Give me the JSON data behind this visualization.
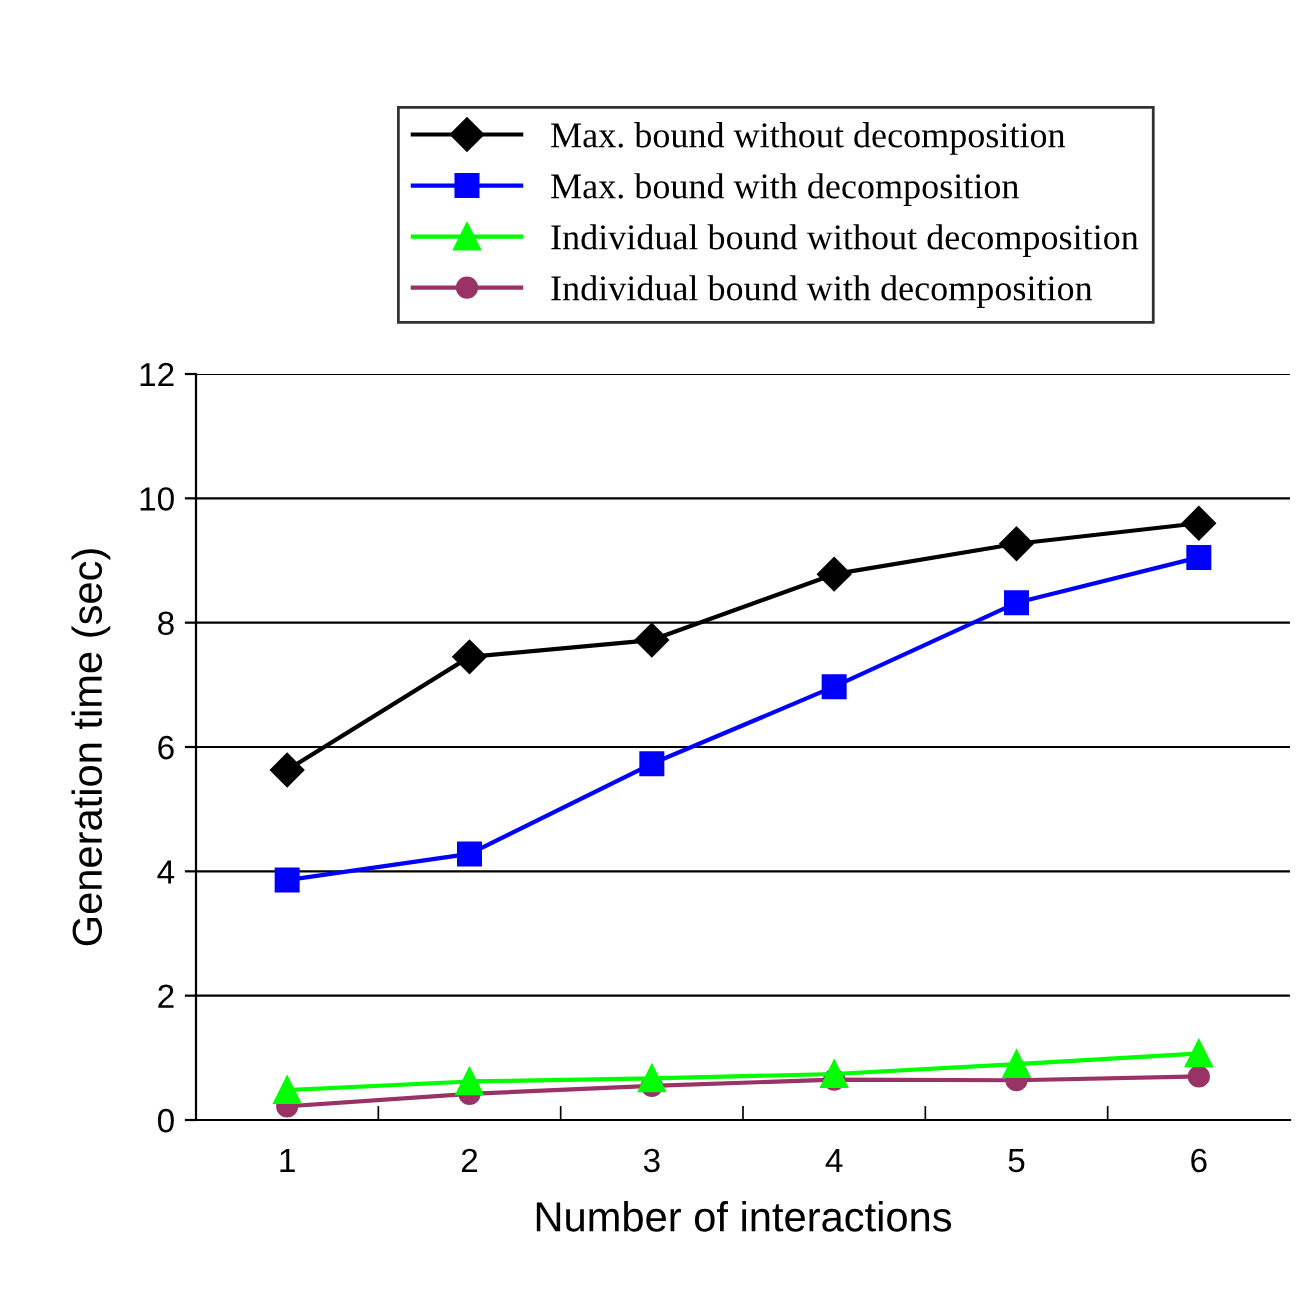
{
  "chart_data": {
    "type": "line",
    "xlabel": "Number of interactions",
    "ylabel": "Generation time (sec)",
    "categories": [
      "1",
      "2",
      "3",
      "4",
      "5",
      "6"
    ],
    "series": [
      {
        "name": "Max. bound without decomposition",
        "color": "#000000",
        "marker": "diamond",
        "values": [
          5.63,
          7.45,
          7.72,
          8.78,
          9.27,
          9.6
        ]
      },
      {
        "name": "Max. bound with decomposition",
        "color": "#0000ff",
        "marker": "square",
        "values": [
          3.86,
          4.28,
          5.73,
          6.97,
          8.32,
          9.05
        ]
      },
      {
        "name": "Individual bound without decomposition",
        "color": "#00ff00",
        "marker": "triangle",
        "values": [
          0.48,
          0.62,
          0.67,
          0.74,
          0.9,
          1.07
        ]
      },
      {
        "name": "Individual bound with decomposition",
        "color": "#993366",
        "marker": "circle",
        "values": [
          0.22,
          0.42,
          0.55,
          0.65,
          0.64,
          0.7
        ]
      }
    ],
    "ylim": [
      0,
      12
    ],
    "yticks": [
      0,
      2,
      4,
      6,
      8,
      10,
      12
    ],
    "grid": "y",
    "legend": "top",
    "line_style": "solid"
  }
}
